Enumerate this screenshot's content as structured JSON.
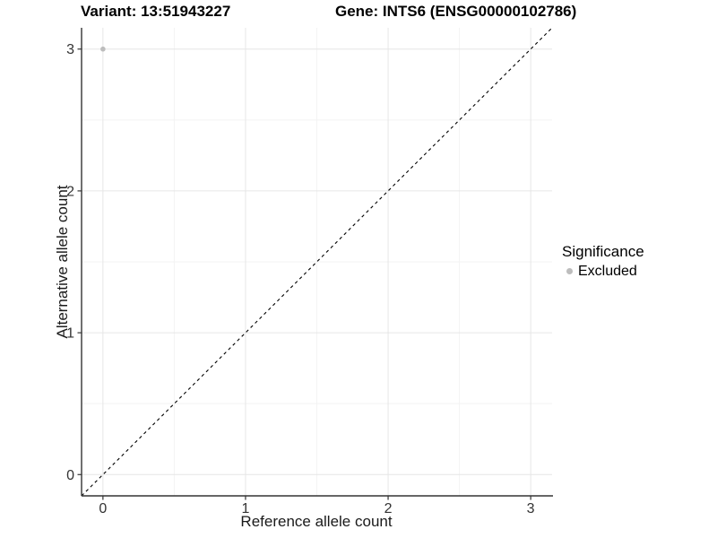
{
  "header": {
    "variant_title": "Variant: 13:51943227",
    "gene_title": "Gene: INTS6 (ENSG00000102786)"
  },
  "legend": {
    "title": "Significance",
    "items": [
      {
        "label": "Excluded",
        "marker_color": "#bdbdbd"
      }
    ]
  },
  "chart_data": {
    "type": "scatter",
    "titles": [
      "Variant: 13:51943227",
      "Gene: INTS6 (ENSG00000102786)"
    ],
    "xlabel": "Reference allele count",
    "ylabel": "Alternative allele count",
    "xlim": [
      -0.15,
      3.15
    ],
    "ylim": [
      -0.15,
      3.15
    ],
    "xticks": [
      0,
      1,
      2,
      3
    ],
    "yticks": [
      0,
      1,
      2,
      3
    ],
    "x_minor_ticks": [
      0.5,
      1.5,
      2.5
    ],
    "y_minor_ticks": [
      0.5,
      1.5,
      2.5
    ],
    "grid": "major+minor",
    "legend_position": "right",
    "series": [
      {
        "name": "Excluded",
        "color": "#bdbdbd",
        "points": [
          {
            "x": 0,
            "y": 3
          }
        ]
      }
    ],
    "reference_line": {
      "slope": 1,
      "intercept": 0,
      "style": "dashed",
      "color": "#000000"
    }
  },
  "style": {
    "background": "#ffffff",
    "major_grid_color": "#e6e6e6",
    "minor_grid_color": "#f3f3f3",
    "axis_line_color": "#333333",
    "tick_color": "#333333",
    "tick_label_color": "#333333",
    "text_color": "#000000"
  }
}
